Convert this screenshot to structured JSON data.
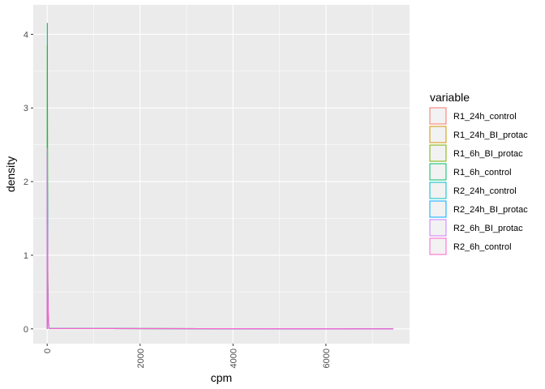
{
  "chart_data": {
    "type": "line",
    "xlabel": "cpm",
    "ylabel": "density",
    "xlim": [
      -300,
      7800
    ],
    "ylim": [
      -0.2,
      4.4
    ],
    "x_ticks": [
      0,
      2000,
      4000,
      6000
    ],
    "x_tick_labels": [
      "0",
      "2000",
      "4000",
      "6000"
    ],
    "y_ticks": [
      0,
      1,
      2,
      3,
      4
    ],
    "y_tick_labels": [
      "0",
      "1",
      "2",
      "3",
      "4"
    ],
    "grid": true,
    "legend": {
      "title": "variable",
      "position": "right"
    },
    "series": [
      {
        "name": "R1_24h_control",
        "color": "#F8766D",
        "x": [
          0,
          3,
          8,
          15,
          25,
          40,
          7450
        ],
        "y": [
          0,
          2.3,
          1.3,
          0.5,
          0.1,
          0.005,
          0
        ]
      },
      {
        "name": "R1_24h_BI_protac",
        "color": "#CD9600",
        "x": [
          0,
          3,
          8,
          15,
          25,
          40,
          7450
        ],
        "y": [
          0,
          2.1,
          1.2,
          0.45,
          0.1,
          0.005,
          0
        ]
      },
      {
        "name": "R1_6h_BI_protac",
        "color": "#7CAE00",
        "x": [
          0,
          3,
          8,
          15,
          25,
          40,
          7450
        ],
        "y": [
          0,
          3.85,
          1.9,
          0.6,
          0.12,
          0.005,
          0
        ]
      },
      {
        "name": "R1_6h_control",
        "color": "#00BE67",
        "x": [
          0,
          3,
          8,
          15,
          25,
          40,
          7450
        ],
        "y": [
          0,
          4.15,
          2.0,
          0.6,
          0.12,
          0.005,
          0
        ]
      },
      {
        "name": "R2_24h_control",
        "color": "#00BFC4",
        "x": [
          0,
          3,
          8,
          15,
          25,
          40,
          7450
        ],
        "y": [
          0,
          2.4,
          1.35,
          0.5,
          0.1,
          0.005,
          0
        ]
      },
      {
        "name": "R2_24h_BI_protac",
        "color": "#00A9FF",
        "x": [
          0,
          3,
          8,
          15,
          25,
          40,
          7450
        ],
        "y": [
          0,
          2.2,
          1.25,
          0.45,
          0.1,
          0.005,
          0
        ]
      },
      {
        "name": "R2_6h_BI_protac",
        "color": "#C77CFF",
        "x": [
          0,
          3,
          8,
          15,
          25,
          40,
          7450
        ],
        "y": [
          0,
          2.35,
          1.3,
          0.5,
          0.1,
          0.005,
          0
        ]
      },
      {
        "name": "R2_6h_control",
        "color": "#FF61CC",
        "x": [
          0,
          3,
          8,
          15,
          25,
          40,
          7450
        ],
        "y": [
          0,
          2.45,
          1.35,
          0.5,
          0.1,
          0.005,
          0
        ]
      }
    ]
  },
  "colors": {
    "panel_background": "#EBEBEB",
    "grid_major": "#FFFFFF",
    "legend_key_fill": "#F2F2F2"
  }
}
